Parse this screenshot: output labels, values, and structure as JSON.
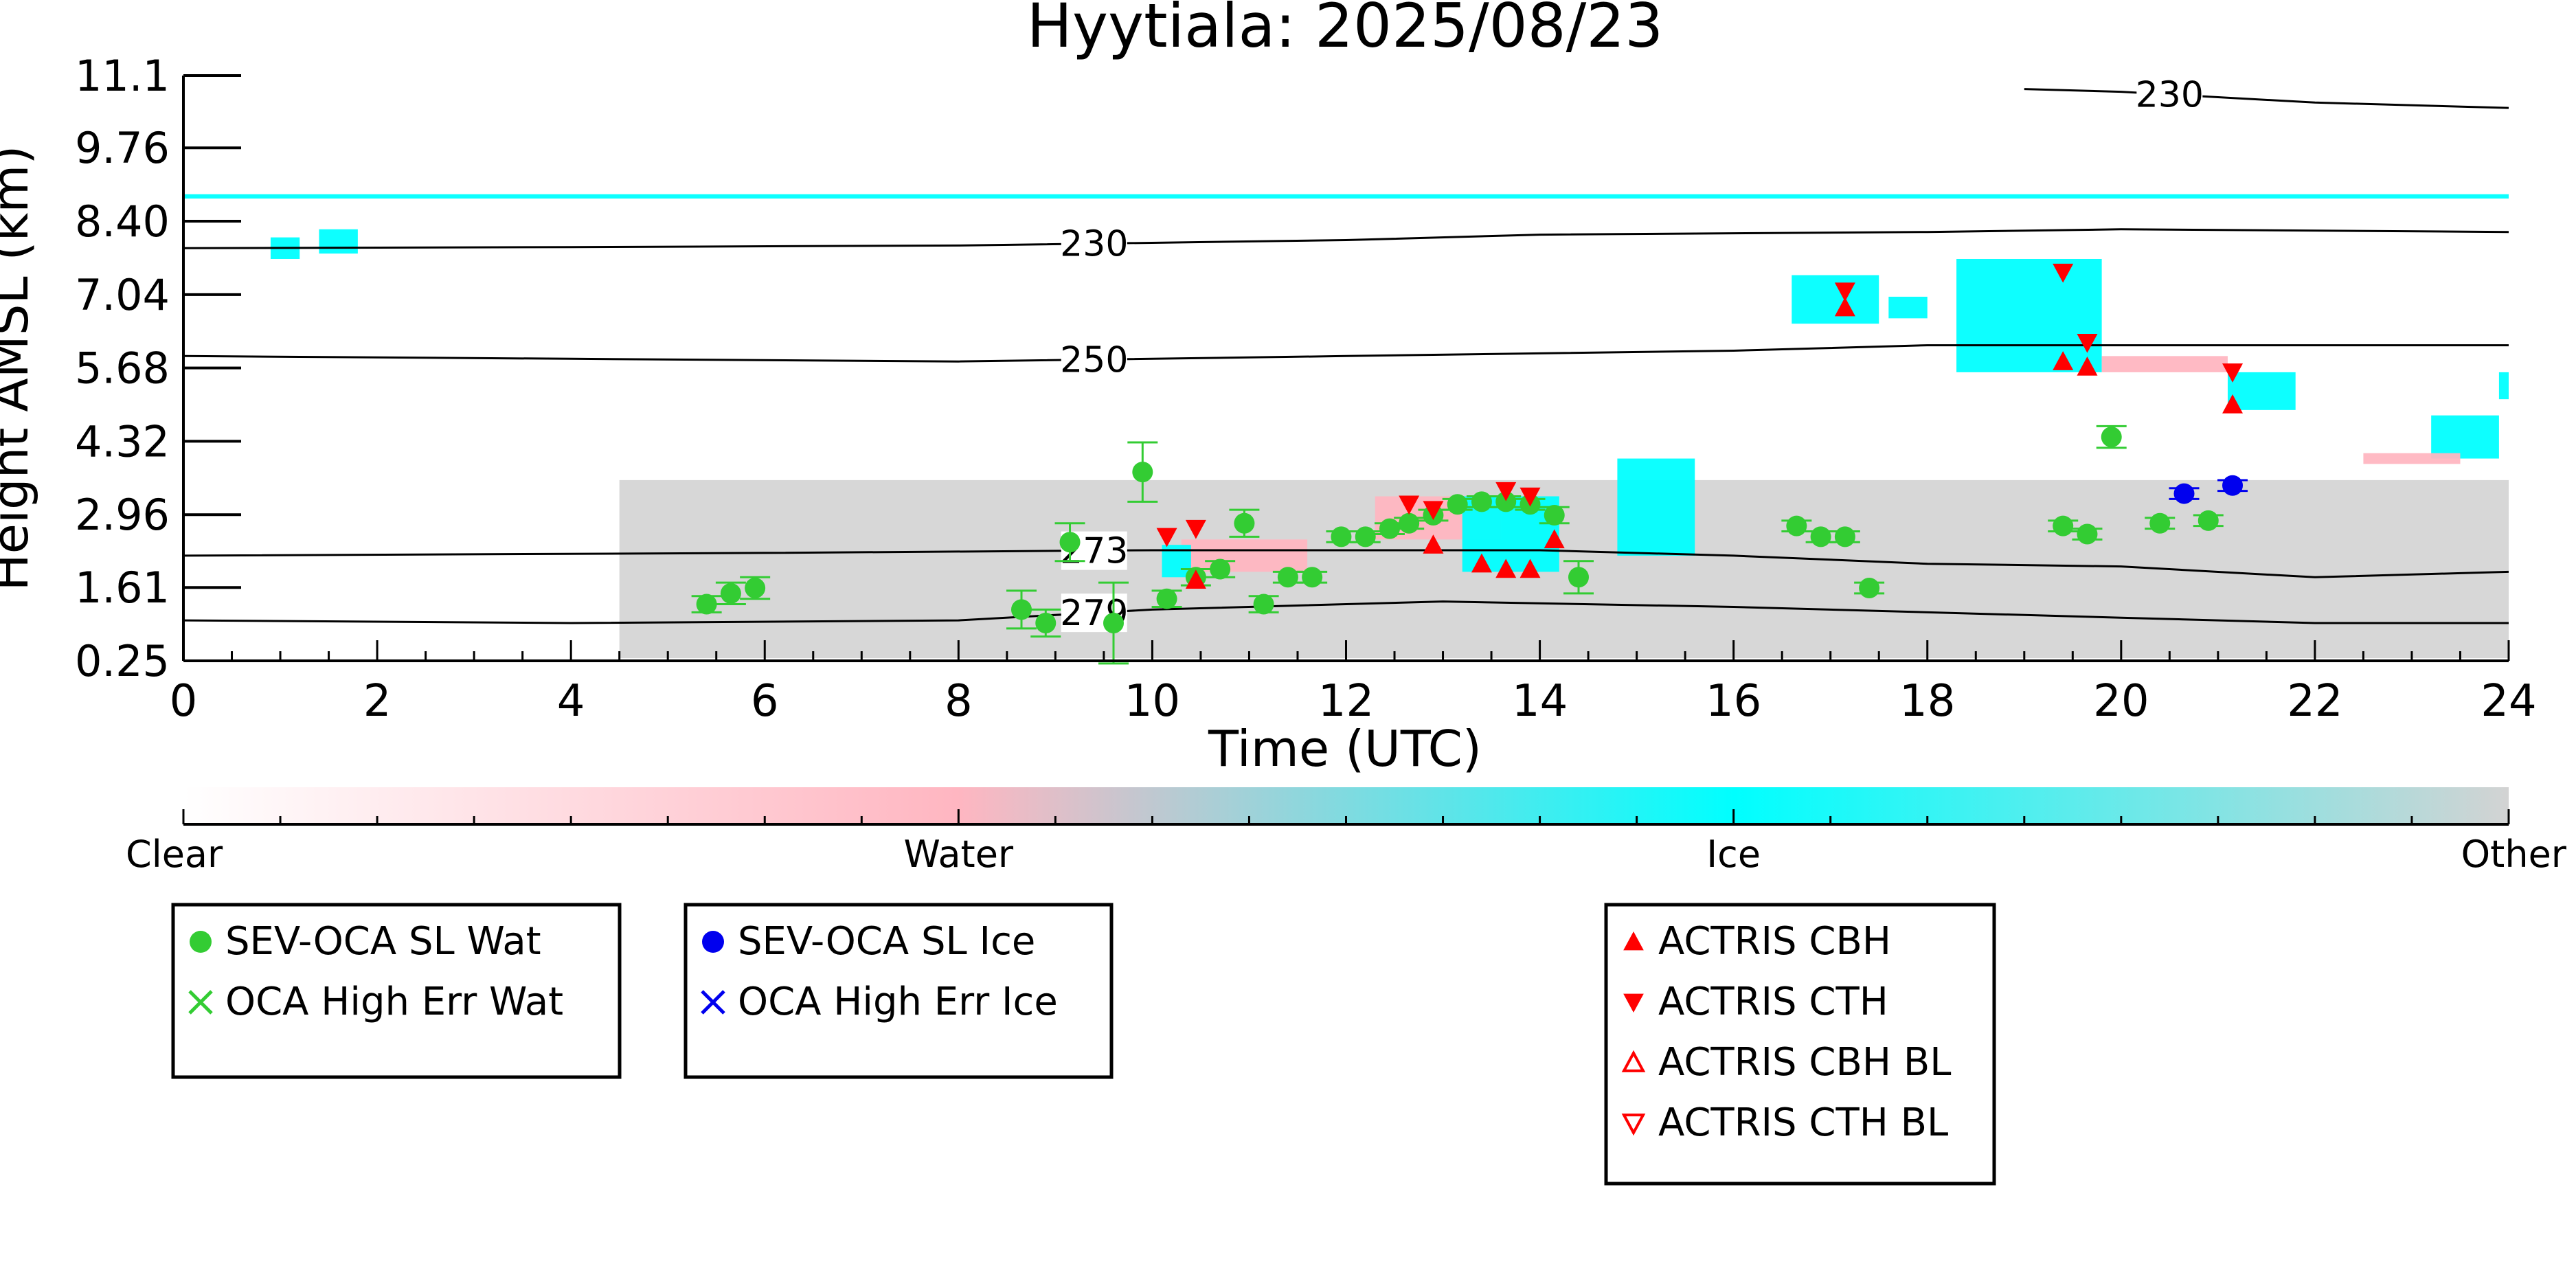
{
  "chart_data": {
    "type": "scatter",
    "title": "Hyytiala: 2025/08/23",
    "xlabel": "Time (UTC)",
    "ylabel": "Height AMSL (km)",
    "xlim": [
      0,
      24
    ],
    "ylim": [
      0.25,
      11.1
    ],
    "x_ticks": [
      0,
      2,
      4,
      6,
      8,
      10,
      12,
      14,
      16,
      18,
      20,
      22,
      24
    ],
    "y_ticks": [
      "0.25",
      "1.61",
      "2.96",
      "4.32",
      "5.68",
      "7.04",
      "8.40",
      "9.76",
      "11.1"
    ],
    "contours": [
      {
        "label": "230",
        "label_x": 9.4,
        "points": [
          [
            0,
            7.9
          ],
          [
            4,
            7.92
          ],
          [
            8,
            7.95
          ],
          [
            12,
            8.05
          ],
          [
            14,
            8.15
          ],
          [
            18,
            8.2
          ],
          [
            20,
            8.25
          ],
          [
            24,
            8.2
          ]
        ]
      },
      {
        "label": "250",
        "label_x": 9.4,
        "points": [
          [
            0,
            5.9
          ],
          [
            4,
            5.85
          ],
          [
            8,
            5.8
          ],
          [
            12,
            5.9
          ],
          [
            14,
            5.95
          ],
          [
            16,
            6.0
          ],
          [
            18,
            6.1
          ],
          [
            24,
            6.1
          ]
        ]
      },
      {
        "label": "273",
        "label_x": 9.4,
        "points": [
          [
            0,
            2.2
          ],
          [
            6,
            2.25
          ],
          [
            10,
            2.3
          ],
          [
            14,
            2.3
          ],
          [
            16,
            2.2
          ],
          [
            18,
            2.05
          ],
          [
            20,
            2.0
          ],
          [
            22,
            1.8
          ],
          [
            24,
            1.9
          ]
        ]
      },
      {
        "label": "279",
        "label_x": 9.4,
        "points": [
          [
            0,
            1.0
          ],
          [
            4,
            0.95
          ],
          [
            8,
            1.0
          ],
          [
            10,
            1.2
          ],
          [
            13,
            1.35
          ],
          [
            16,
            1.25
          ],
          [
            20,
            1.05
          ],
          [
            22,
            0.95
          ],
          [
            24,
            0.95
          ]
        ]
      },
      {
        "label": "230",
        "label_x": 20.5,
        "points": [
          [
            19,
            10.85
          ],
          [
            20,
            10.8
          ],
          [
            22,
            10.6
          ],
          [
            24,
            10.5
          ]
        ]
      }
    ],
    "cloud_mask": {
      "colorbar_labels": [
        "Clear",
        "Water",
        "Ice",
        "Other"
      ],
      "colors": {
        "clear": "#ffffff",
        "water": "#ffb6c1",
        "ice": "#00ffff",
        "other": "#d3d3d3"
      },
      "regions": [
        {
          "class": "ice",
          "x": [
            0.9,
            1.2
          ],
          "y": [
            7.7,
            8.1
          ]
        },
        {
          "class": "ice",
          "x": [
            1.4,
            1.8
          ],
          "y": [
            7.8,
            8.25
          ]
        },
        {
          "class": "ice",
          "x": [
            0,
            24
          ],
          "y": [
            8.82,
            8.9
          ]
        },
        {
          "class": "other",
          "x": [
            4.5,
            24
          ],
          "y": [
            0.3,
            3.6
          ]
        },
        {
          "class": "water",
          "x": [
            10.3,
            11.6
          ],
          "y": [
            1.9,
            2.5
          ]
        },
        {
          "class": "ice",
          "x": [
            10.1,
            10.4
          ],
          "y": [
            1.8,
            2.4
          ]
        },
        {
          "class": "water",
          "x": [
            12.3,
            13.6
          ],
          "y": [
            2.5,
            3.3
          ]
        },
        {
          "class": "ice",
          "x": [
            13.2,
            14.2
          ],
          "y": [
            1.9,
            3.3
          ]
        },
        {
          "class": "ice",
          "x": [
            14.8,
            15.6
          ],
          "y": [
            2.2,
            4.0
          ]
        },
        {
          "class": "ice",
          "x": [
            16.6,
            17.5
          ],
          "y": [
            6.5,
            7.4
          ]
        },
        {
          "class": "ice",
          "x": [
            17.6,
            18.0
          ],
          "y": [
            6.6,
            7.0
          ]
        },
        {
          "class": "ice",
          "x": [
            18.3,
            19.8
          ],
          "y": [
            5.6,
            7.7
          ]
        },
        {
          "class": "water",
          "x": [
            19.8,
            21.1
          ],
          "y": [
            5.6,
            5.9
          ]
        },
        {
          "class": "ice",
          "x": [
            21.1,
            21.8
          ],
          "y": [
            4.9,
            5.6
          ]
        },
        {
          "class": "ice",
          "x": [
            23.2,
            23.9
          ],
          "y": [
            4.0,
            4.8
          ]
        },
        {
          "class": "ice",
          "x": [
            23.9,
            24.0
          ],
          "y": [
            5.1,
            5.6
          ]
        },
        {
          "class": "water",
          "x": [
            22.5,
            23.5
          ],
          "y": [
            3.9,
            4.1
          ]
        }
      ]
    },
    "series": [
      {
        "name": "SEV-OCA SL Wat",
        "color": "#33cc33",
        "marker": "circle",
        "points": [
          {
            "x": 5.4,
            "y": 1.3,
            "err": 0.15
          },
          {
            "x": 5.65,
            "y": 1.5,
            "err": 0.2
          },
          {
            "x": 5.9,
            "y": 1.6,
            "err": 0.2
          },
          {
            "x": 8.65,
            "y": 1.2,
            "err": 0.35
          },
          {
            "x": 8.9,
            "y": 0.95,
            "err": 0.25
          },
          {
            "x": 9.15,
            "y": 2.45,
            "err": 0.35
          },
          {
            "x": 9.6,
            "y": 0.95,
            "err": 0.75
          },
          {
            "x": 9.9,
            "y": 3.75,
            "err": 0.55
          },
          {
            "x": 10.15,
            "y": 1.4,
            "err": 0.15
          },
          {
            "x": 10.45,
            "y": 1.8,
            "err": 0.15
          },
          {
            "x": 10.7,
            "y": 1.95,
            "err": 0.15
          },
          {
            "x": 10.95,
            "y": 2.8,
            "err": 0.25
          },
          {
            "x": 11.15,
            "y": 1.3,
            "err": 0.15
          },
          {
            "x": 11.4,
            "y": 1.8,
            "err": 0.1
          },
          {
            "x": 11.65,
            "y": 1.8,
            "err": 0.1
          },
          {
            "x": 11.95,
            "y": 2.55,
            "err": 0.1
          },
          {
            "x": 12.2,
            "y": 2.55,
            "err": 0.1
          },
          {
            "x": 12.45,
            "y": 2.7,
            "err": 0.1
          },
          {
            "x": 12.65,
            "y": 2.8,
            "err": 0.1
          },
          {
            "x": 12.9,
            "y": 2.95,
            "err": 0.1
          },
          {
            "x": 13.15,
            "y": 3.15,
            "err": 0.1
          },
          {
            "x": 13.4,
            "y": 3.2,
            "err": 0.1
          },
          {
            "x": 13.65,
            "y": 3.2,
            "err": 0.1
          },
          {
            "x": 13.9,
            "y": 3.15,
            "err": 0.1
          },
          {
            "x": 14.15,
            "y": 2.95,
            "err": 0.15
          },
          {
            "x": 14.4,
            "y": 1.8,
            "err": 0.3
          },
          {
            "x": 16.65,
            "y": 2.75,
            "err": 0.1
          },
          {
            "x": 16.9,
            "y": 2.55,
            "err": 0.1
          },
          {
            "x": 17.15,
            "y": 2.55,
            "err": 0.1
          },
          {
            "x": 17.4,
            "y": 1.6,
            "err": 0.1
          },
          {
            "x": 19.4,
            "y": 2.75,
            "err": 0.1
          },
          {
            "x": 19.65,
            "y": 2.6,
            "err": 0.1
          },
          {
            "x": 19.9,
            "y": 4.4,
            "err": 0.2
          },
          {
            "x": 20.4,
            "y": 2.8,
            "err": 0.1
          },
          {
            "x": 20.9,
            "y": 2.85,
            "err": 0.1
          }
        ]
      },
      {
        "name": "SEV-OCA SL Ice",
        "color": "#0000ee",
        "marker": "circle",
        "points": [
          {
            "x": 20.65,
            "y": 3.35,
            "err": 0.1
          },
          {
            "x": 21.15,
            "y": 3.5,
            "err": 0.1
          }
        ]
      },
      {
        "name": "ACTRIS CBH",
        "color": "#ff0000",
        "marker": "triangle-up",
        "points": [
          {
            "x": 10.45,
            "y": 1.75
          },
          {
            "x": 12.9,
            "y": 2.4
          },
          {
            "x": 13.4,
            "y": 2.05
          },
          {
            "x": 13.65,
            "y": 1.95
          },
          {
            "x": 13.9,
            "y": 1.95
          },
          {
            "x": 14.15,
            "y": 2.5
          },
          {
            "x": 17.15,
            "y": 6.8
          },
          {
            "x": 19.4,
            "y": 5.8
          },
          {
            "x": 19.65,
            "y": 5.7
          },
          {
            "x": 21.15,
            "y": 5.0
          }
        ]
      },
      {
        "name": "ACTRIS CTH",
        "color": "#ff0000",
        "marker": "triangle-down",
        "points": [
          {
            "x": 10.15,
            "y": 2.55
          },
          {
            "x": 10.45,
            "y": 2.7
          },
          {
            "x": 12.65,
            "y": 3.15
          },
          {
            "x": 12.9,
            "y": 3.05
          },
          {
            "x": 13.65,
            "y": 3.4
          },
          {
            "x": 13.9,
            "y": 3.3
          },
          {
            "x": 17.15,
            "y": 7.1
          },
          {
            "x": 19.4,
            "y": 7.45
          },
          {
            "x": 19.65,
            "y": 6.15
          },
          {
            "x": 21.15,
            "y": 5.6
          }
        ]
      }
    ],
    "legends": [
      {
        "items": [
          {
            "label": "SEV-OCA SL Wat",
            "marker": "circle",
            "color": "#33cc33"
          },
          {
            "label": "OCA High Err Wat",
            "marker": "x",
            "color": "#33cc33"
          }
        ]
      },
      {
        "items": [
          {
            "label": "SEV-OCA SL Ice",
            "marker": "circle",
            "color": "#0000ee"
          },
          {
            "label": "OCA High Err Ice",
            "marker": "x",
            "color": "#0000ee"
          }
        ]
      },
      {
        "items": [
          {
            "label": "ACTRIS CBH",
            "marker": "triangle-up",
            "color": "#ff0000"
          },
          {
            "label": "ACTRIS CTH",
            "marker": "triangle-down",
            "color": "#ff0000"
          },
          {
            "label": "ACTRIS CBH BL",
            "marker": "triangle-up-open",
            "color": "#ff0000"
          },
          {
            "label": "ACTRIS CTH BL",
            "marker": "triangle-down-open",
            "color": "#ff0000"
          }
        ]
      }
    ]
  }
}
